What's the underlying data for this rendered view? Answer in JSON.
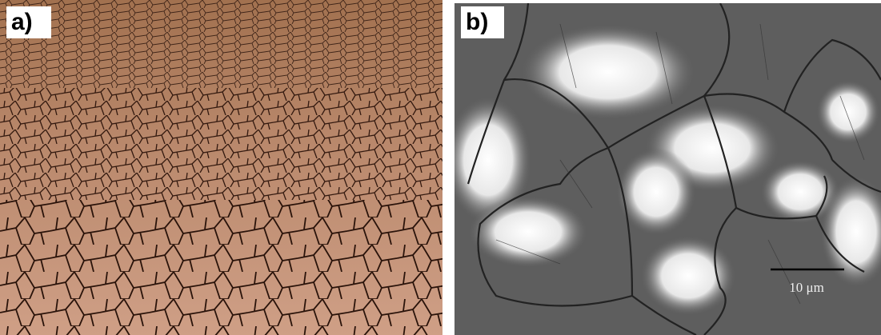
{
  "panels": [
    {
      "label": "a)"
    },
    {
      "label": "b)",
      "scale_bar": "10 μm"
    }
  ]
}
